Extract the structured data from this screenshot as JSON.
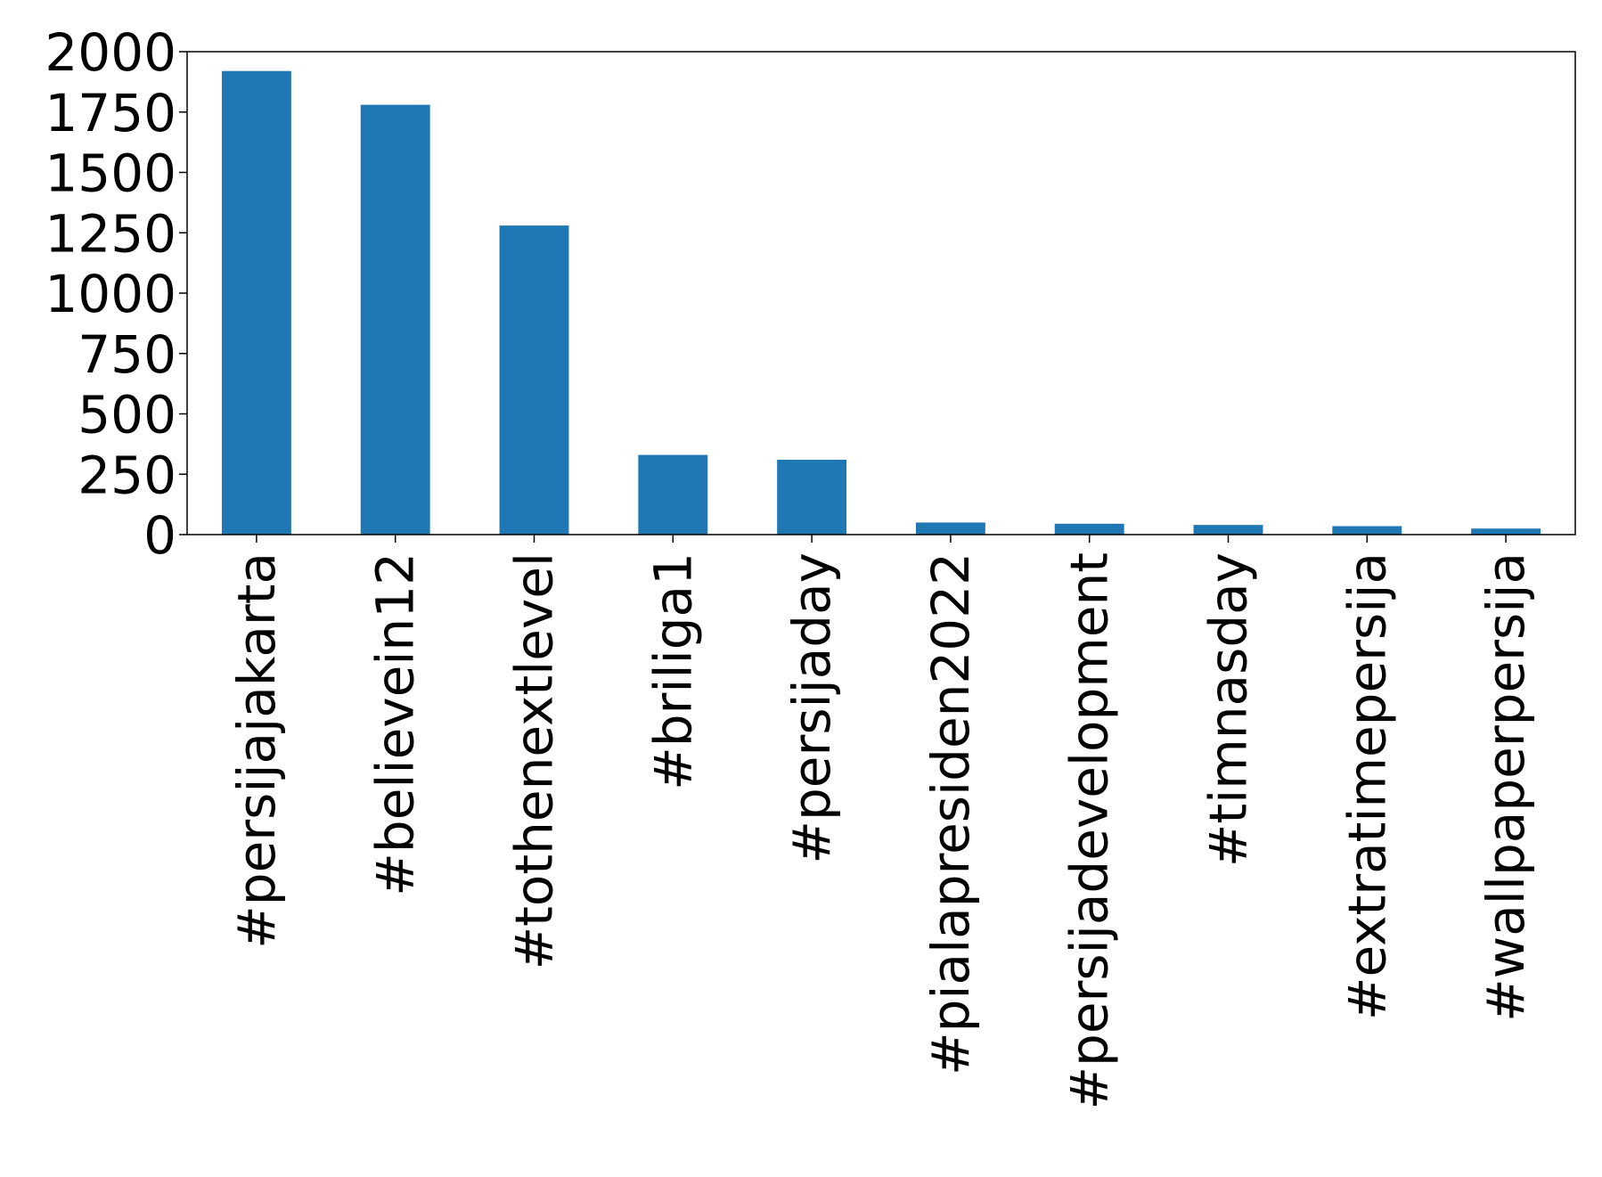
{
  "chart_data": {
    "type": "bar",
    "title": "",
    "xlabel": "",
    "ylabel": "",
    "categories": [
      "#persijajakarta",
      "#believein12",
      "#tothenextlevel",
      "#briliga1",
      "#persijaday",
      "#pialapresiden2022",
      "#persijadevelopment",
      "#timnasday",
      "#extratimepersija",
      "#wallpaperpersija"
    ],
    "values": [
      1920,
      1780,
      1280,
      330,
      310,
      50,
      45,
      40,
      35,
      25
    ],
    "ylim": [
      0,
      2000
    ],
    "yticks": [
      0,
      250,
      500,
      750,
      1000,
      1250,
      1500,
      1750,
      2000
    ],
    "ytick_labels": [
      "0",
      "250",
      "500",
      "750",
      "1000",
      "1250",
      "1500",
      "1750",
      "2000"
    ],
    "bar_color": "#1f77b4",
    "grid": false,
    "legend": "none"
  }
}
